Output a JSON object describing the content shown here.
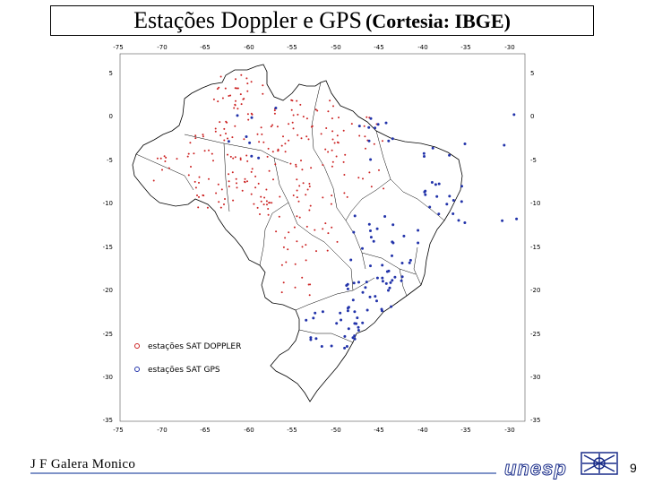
{
  "title": {
    "main": "Estações Doppler e GPS",
    "source": "(Cortesia: IBGE)"
  },
  "map": {
    "region": "Brazil",
    "lon_ticks": [
      "-75",
      "-70",
      "-65",
      "-60",
      "-55",
      "-50",
      "-45",
      "-40",
      "-35",
      "-30"
    ],
    "lon_ticks_bottom": [
      "-75",
      "-70",
      "-65",
      "-60",
      "-55",
      "-50",
      "-45",
      "-40",
      "-35",
      "-30"
    ],
    "lat_ticks": [
      "5",
      "0",
      "-5",
      "-10",
      "-15",
      "-20",
      "-25",
      "-30",
      "-35"
    ],
    "legend": [
      {
        "label": "estações SAT DOPPLER",
        "color": "#cc2222"
      },
      {
        "label": "estações SAT GPS",
        "color": "#2233aa"
      }
    ]
  },
  "footer": {
    "author": "J F Galera Monico",
    "logo_text": "unesp",
    "page_number": "9"
  },
  "colors": {
    "doppler": "#cc2222",
    "gps": "#2233aa",
    "accent_line": "#7f93c8"
  }
}
